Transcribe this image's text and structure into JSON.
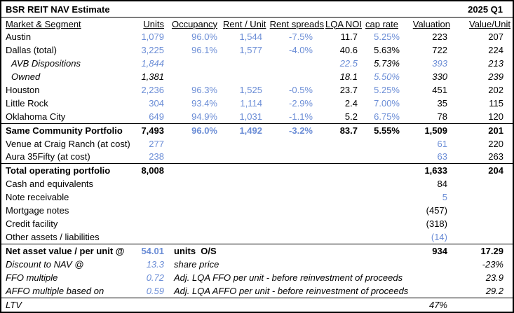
{
  "title": "BSR REIT NAV Estimate",
  "period": "2025 Q1",
  "colors": {
    "input_blue": "#6B8DD6",
    "text": "#000000",
    "border": "#000000"
  },
  "columns": [
    "Market & Segment",
    "Units",
    "Occupancy",
    "Rent / Unit",
    "Rent spreads",
    "LQA NOI",
    "cap rate",
    "Valuation",
    "Value/Unit"
  ],
  "rows": [
    {
      "label": "Austin",
      "values": [
        "1,079",
        "96.0%",
        "1,544",
        "-7.5%",
        "11.7",
        "5.25%",
        "223",
        "207"
      ],
      "value_colors": [
        "input",
        "input",
        "input",
        "input",
        "text",
        "input",
        "text",
        "text"
      ]
    },
    {
      "label": "Dallas (total)",
      "values": [
        "3,225",
        "96.1%",
        "1,577",
        "-4.0%",
        "40.6",
        "5.63%",
        "722",
        "224"
      ],
      "value_colors": [
        "input",
        "input",
        "input",
        "input",
        "text",
        "text",
        "text",
        "text"
      ]
    },
    {
      "label": "AVB Dispositions",
      "indent": true,
      "italic": true,
      "values": [
        "1,844",
        "",
        "",
        "",
        "22.5",
        "5.73%",
        "393",
        "213"
      ],
      "value_colors": [
        "input",
        "",
        "",
        "",
        "input",
        "text",
        "input",
        "text"
      ]
    },
    {
      "label": "Owned",
      "indent": true,
      "italic": true,
      "values": [
        "1,381",
        "",
        "",
        "",
        "18.1",
        "5.50%",
        "330",
        "239"
      ],
      "value_colors": [
        "text",
        "",
        "",
        "",
        "text",
        "input",
        "text",
        "text"
      ]
    },
    {
      "label": "Houston",
      "values": [
        "2,236",
        "96.3%",
        "1,525",
        "-0.5%",
        "23.7",
        "5.25%",
        "451",
        "202"
      ],
      "value_colors": [
        "input",
        "input",
        "input",
        "input",
        "text",
        "input",
        "text",
        "text"
      ]
    },
    {
      "label": "Little Rock",
      "values": [
        "304",
        "93.4%",
        "1,114",
        "-2.9%",
        "2.4",
        "7.00%",
        "35",
        "115"
      ],
      "value_colors": [
        "input",
        "input",
        "input",
        "input",
        "text",
        "input",
        "text",
        "text"
      ]
    },
    {
      "label": "Oklahoma City",
      "values": [
        "649",
        "94.9%",
        "1,031",
        "-1.1%",
        "5.2",
        "6.75%",
        "78",
        "120"
      ],
      "value_colors": [
        "input",
        "input",
        "input",
        "input",
        "text",
        "input",
        "text",
        "text"
      ]
    },
    {
      "label": "Same Community Portfolio",
      "bold": true,
      "border_top": true,
      "values": [
        "7,493",
        "96.0%",
        "1,492",
        "-3.2%",
        "83.7",
        "5.55%",
        "1,509",
        "201"
      ],
      "value_colors": [
        "text",
        "input",
        "input",
        "input",
        "text",
        "text",
        "text",
        "text"
      ]
    },
    {
      "label": "Venue at Craig Ranch (at cost)",
      "values": [
        "277",
        "",
        "",
        "",
        "",
        "",
        "61",
        "220"
      ],
      "value_colors": [
        "input",
        "",
        "",
        "",
        "",
        "",
        "input",
        "text"
      ]
    },
    {
      "label": "Aura 35Fifty (at cost)",
      "values": [
        "238",
        "",
        "",
        "",
        "",
        "",
        "63",
        "263"
      ],
      "value_colors": [
        "input",
        "",
        "",
        "",
        "",
        "",
        "input",
        "text"
      ]
    },
    {
      "label": "Total operating portfolio",
      "bold": true,
      "border_top": true,
      "values": [
        "8,008",
        "",
        "",
        "",
        "",
        "",
        "1,633",
        "204"
      ],
      "value_colors": [
        "text",
        "",
        "",
        "",
        "",
        "",
        "text",
        "text"
      ]
    },
    {
      "label": "Cash and equivalents",
      "values": [
        "",
        "",
        "",
        "",
        "",
        "",
        "84",
        ""
      ],
      "value_colors": [
        "",
        "",
        "",
        "",
        "",
        "",
        "text",
        ""
      ]
    },
    {
      "label": "Note receivable",
      "values": [
        "",
        "",
        "",
        "",
        "",
        "",
        "5",
        ""
      ],
      "value_colors": [
        "",
        "",
        "",
        "",
        "",
        "",
        "input",
        ""
      ]
    },
    {
      "label": "Mortgage notes",
      "values": [
        "",
        "",
        "",
        "",
        "",
        "",
        "(457)",
        ""
      ],
      "value_colors": [
        "",
        "",
        "",
        "",
        "",
        "",
        "text",
        ""
      ]
    },
    {
      "label": "Credit facility",
      "values": [
        "",
        "",
        "",
        "",
        "",
        "",
        "(318)",
        ""
      ],
      "value_colors": [
        "",
        "",
        "",
        "",
        "",
        "",
        "text",
        ""
      ]
    },
    {
      "label": "Other assets / liabilities",
      "values": [
        "",
        "",
        "",
        "",
        "",
        "",
        "(14)",
        ""
      ],
      "value_colors": [
        "",
        "",
        "",
        "",
        "",
        "",
        "input",
        ""
      ]
    },
    {
      "label": "Net asset value / per unit @",
      "bold": true,
      "border_top": true,
      "units_value": "54.01",
      "units_value_color": "input",
      "note": "units  O/S",
      "valuation": "934",
      "value_unit": "17.29"
    },
    {
      "label": "Discount to NAV @",
      "italic": true,
      "units_value": "13.3",
      "units_value_color": "input",
      "note": "share price",
      "valuation": "",
      "value_unit": "-23%"
    },
    {
      "label": "FFO multiple",
      "italic": true,
      "units_value": "0.72",
      "units_value_color": "input",
      "note": "Adj. LQA FFO per unit - before reinvestment of proceeds",
      "valuation": "",
      "value_unit": "23.9"
    },
    {
      "label": "AFFO multiple based on",
      "italic": true,
      "units_value": "0.59",
      "units_value_color": "input",
      "note": "Adj. LQA AFFO per unit - before reinvestment of proceeds",
      "valuation": "",
      "value_unit": "29.2"
    },
    {
      "label": "LTV",
      "italic": true,
      "border_top": true,
      "units_value": "",
      "note": "",
      "valuation": "47%",
      "value_unit": ""
    }
  ]
}
